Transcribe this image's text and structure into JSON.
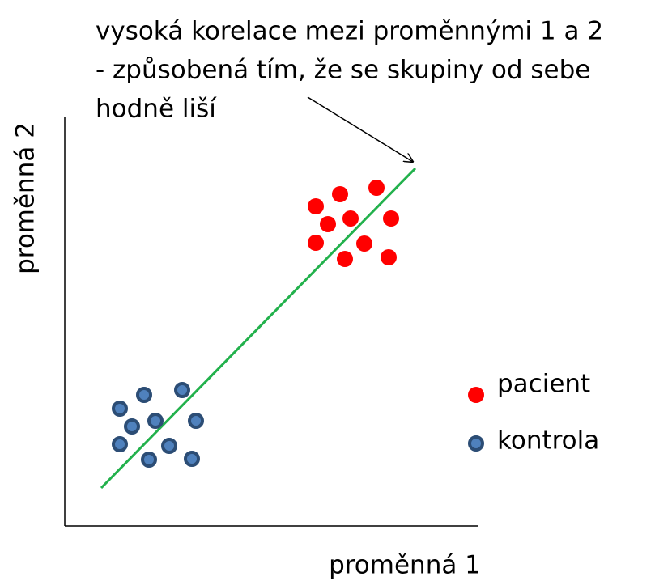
{
  "annotation": [
    "vysoká korelace mezi proměnnými 1 a 2",
    "- způsobená tím, že se skupiny od sebe",
    "hodně liší"
  ],
  "x_axis_label": "proměnná 1",
  "y_axis_label": "proměnná 2",
  "legend": [
    "pacient",
    "kontrola"
  ]
}
